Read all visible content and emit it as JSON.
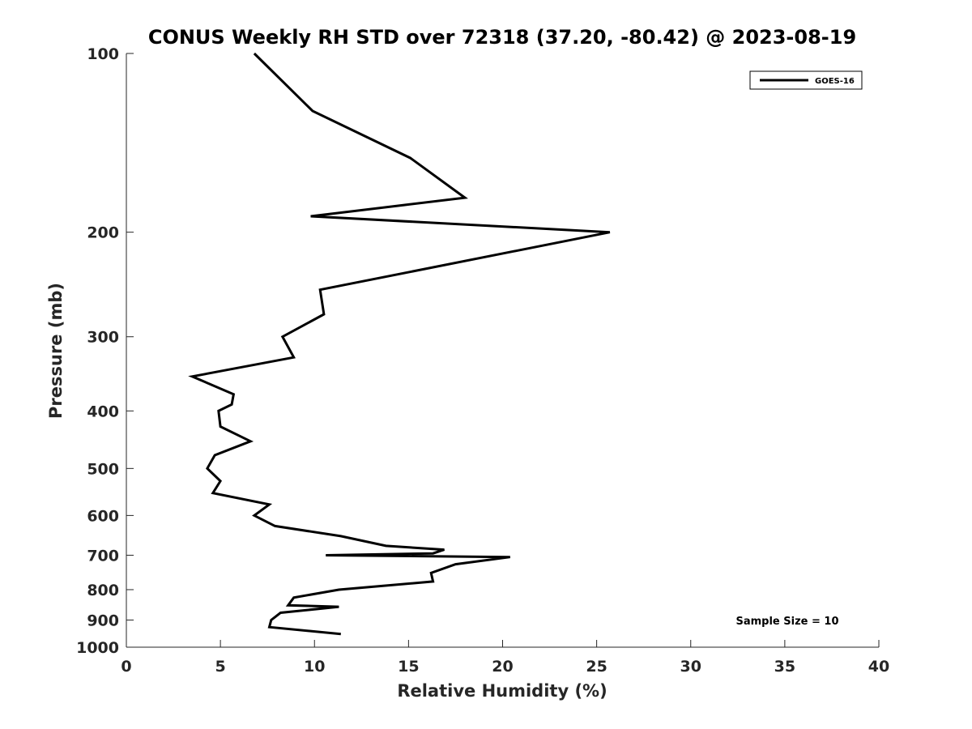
{
  "chart_data": {
    "type": "line",
    "title": "CONUS Weekly RH STD over 72318 (37.20, -80.42) @ 2023-08-19",
    "xlabel": "Relative Humidity (%)",
    "ylabel": "Pressure (mb)",
    "xlim": [
      0,
      40
    ],
    "ylim": [
      100,
      1000
    ],
    "y_scale": "log",
    "y_reversed": true,
    "x_ticks": [
      0,
      5,
      10,
      15,
      20,
      25,
      30,
      35,
      40
    ],
    "y_ticks": [
      100,
      200,
      300,
      400,
      500,
      600,
      700,
      800,
      900,
      1000
    ],
    "grid": false,
    "legend_position": "top-right",
    "annotation": "Sample Size = 10",
    "series": [
      {
        "name": "GOES-16",
        "color": "#000000",
        "points": [
          [
            6.8,
            100
          ],
          [
            9.9,
            125
          ],
          [
            15.1,
            150
          ],
          [
            18.0,
            175
          ],
          [
            9.8,
            188
          ],
          [
            25.7,
            200
          ],
          [
            10.3,
            250
          ],
          [
            10.5,
            275
          ],
          [
            8.3,
            300
          ],
          [
            8.9,
            325
          ],
          [
            3.5,
            350
          ],
          [
            5.7,
            375
          ],
          [
            5.6,
            390
          ],
          [
            4.9,
            400
          ],
          [
            5.0,
            425
          ],
          [
            6.6,
            450
          ],
          [
            4.7,
            475
          ],
          [
            4.3,
            500
          ],
          [
            5.0,
            525
          ],
          [
            4.6,
            550
          ],
          [
            7.6,
            575
          ],
          [
            6.8,
            600
          ],
          [
            7.9,
            625
          ],
          [
            11.4,
            650
          ],
          [
            13.8,
            675
          ],
          [
            16.9,
            685
          ],
          [
            16.3,
            695
          ],
          [
            10.6,
            700
          ],
          [
            20.4,
            705
          ],
          [
            17.5,
            725
          ],
          [
            16.2,
            750
          ],
          [
            16.3,
            775
          ],
          [
            11.3,
            800
          ],
          [
            8.9,
            825
          ],
          [
            8.6,
            850
          ],
          [
            11.3,
            855
          ],
          [
            8.2,
            875
          ],
          [
            7.7,
            900
          ],
          [
            7.6,
            925
          ],
          [
            11.4,
            950
          ]
        ]
      }
    ]
  }
}
